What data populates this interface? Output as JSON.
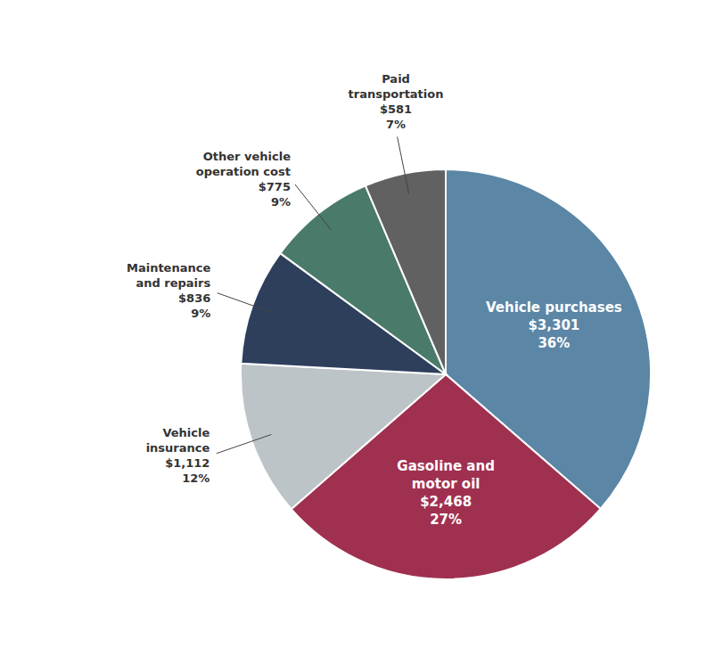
{
  "chart_data": {
    "type": "pie",
    "categories": [
      "Vehicle purchases",
      "Gasoline and\nmotor oil",
      "Vehicle\ninsurance",
      "Maintenance\nand repairs",
      "Other vehicle\noperation cost",
      "Paid\ntransportation"
    ],
    "values": [
      3301,
      2468,
      1112,
      836,
      775,
      581
    ],
    "value_labels": [
      "$3,301",
      "$2,468",
      "$1,112",
      "$836",
      "$775",
      "$581"
    ],
    "shares": [
      36,
      27,
      12,
      9,
      9,
      7
    ],
    "share_labels": [
      "36%",
      "27%",
      "12%",
      "9%",
      "9%",
      "7%"
    ],
    "colors": [
      "#5b86a5",
      "#a03050",
      "#bdc4c8",
      "#2e3f5c",
      "#4a7a6a",
      "#616161"
    ],
    "data_labels": true
  }
}
